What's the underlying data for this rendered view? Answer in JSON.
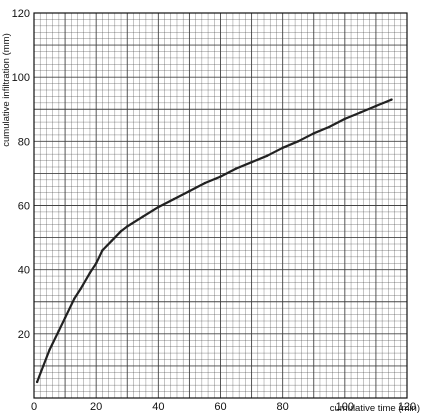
{
  "chart_data": {
    "type": "line",
    "title": "",
    "xlabel": "cumulative time (min)",
    "ylabel": "cumulative infiltration (mm)",
    "xlim": [
      0,
      120
    ],
    "ylim": [
      0,
      120
    ],
    "x_ticks": [
      0,
      20,
      40,
      60,
      80,
      100,
      120
    ],
    "y_ticks": [
      20,
      40,
      60,
      80,
      100,
      120
    ],
    "grid": true,
    "grid_minor_step": 2,
    "grid_major_step": 10,
    "legend": "none",
    "colors": {
      "grid": "#3a3a3a",
      "line": "#222222",
      "background": "#ffffff"
    },
    "series": [
      {
        "points": [
          [
            1,
            5
          ],
          [
            3,
            10
          ],
          [
            5,
            15
          ],
          [
            8,
            21
          ],
          [
            10,
            25
          ],
          [
            13,
            31
          ],
          [
            15,
            34
          ],
          [
            18,
            39
          ],
          [
            20,
            42
          ],
          [
            22,
            46
          ],
          [
            25,
            49
          ],
          [
            28,
            52
          ],
          [
            30,
            53.5
          ],
          [
            35,
            56.5
          ],
          [
            40,
            59.5
          ],
          [
            45,
            62
          ],
          [
            50,
            64.5
          ],
          [
            55,
            67
          ],
          [
            60,
            69
          ],
          [
            65,
            71.5
          ],
          [
            70,
            73.5
          ],
          [
            75,
            75.5
          ],
          [
            80,
            78
          ],
          [
            85,
            80
          ],
          [
            90,
            82.5
          ],
          [
            95,
            84.5
          ],
          [
            100,
            87
          ],
          [
            105,
            89
          ],
          [
            110,
            91
          ],
          [
            115,
            93
          ]
        ]
      }
    ]
  }
}
